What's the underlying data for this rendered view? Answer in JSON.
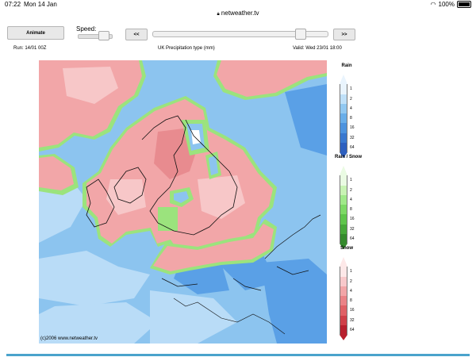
{
  "status_bar": {
    "time": "07:22",
    "date": "Mon 14 Jan",
    "url": "netweather.tv",
    "battery": "100%"
  },
  "controls": {
    "animate_label": "Animate",
    "speed_label": "Speed:",
    "prev_label": "<<",
    "next_label": ">>"
  },
  "info": {
    "run": "Run: 14/01 00Z",
    "title": "UK Precipitation type (mm)",
    "valid": "Valid: Wed 23/01 18:00"
  },
  "map": {
    "credit": "(c)2006 www.netweather.tv",
    "colors": {
      "sea": "#8cc4ef",
      "sea_light": "#b9dcf7",
      "sea_dark": "#5aa0e6",
      "snow": "#f2a6a8",
      "snow_light": "#f7c7c8",
      "snow_dark": "#e88b8f",
      "mix": "#9be37d",
      "white": "#ffffff"
    }
  },
  "legends": [
    {
      "title": "Rain",
      "ticks": [
        "1",
        "2",
        "4",
        "8",
        "16",
        "32",
        "64"
      ],
      "colors": [
        "#e9f4fd",
        "#bfe0f8",
        "#91c8f1",
        "#69aee9",
        "#4d93de",
        "#3a78cf",
        "#2d5fbf"
      ]
    },
    {
      "title": "Rain / Snow",
      "ticks": [
        "1",
        "2",
        "4",
        "8",
        "16",
        "32",
        "64"
      ],
      "colors": [
        "#eafbe3",
        "#c8f3b4",
        "#a0e98a",
        "#7dd966",
        "#5fc54c",
        "#47a83a",
        "#358a2d"
      ]
    },
    {
      "title": "Snow",
      "ticks": [
        "1",
        "2",
        "4",
        "8",
        "16",
        "32",
        "64"
      ],
      "colors": [
        "#fde8e8",
        "#f8c9cb",
        "#f2a6a8",
        "#ea8387",
        "#df6166",
        "#cf4049",
        "#b8202e"
      ]
    }
  ]
}
